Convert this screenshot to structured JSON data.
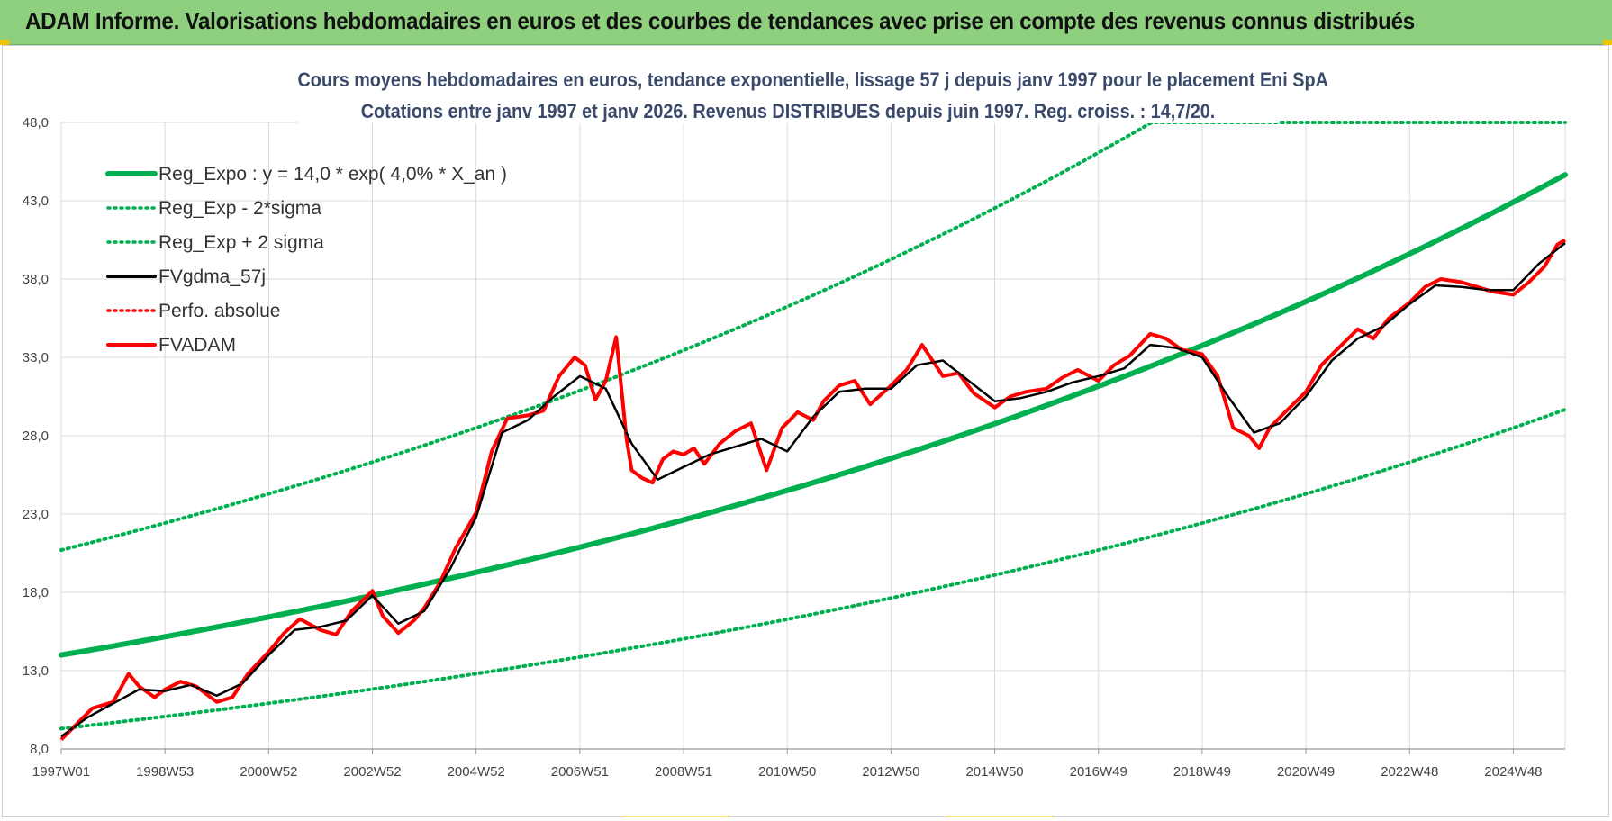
{
  "banner": {
    "title": "ADAM Informe. Valorisations hebdomadaires en euros et des courbes de tendances avec prise en compte des revenus connus distribués",
    "background": "#8fd07f"
  },
  "chart_data": {
    "type": "line",
    "title_line1": "Cours moyens hebdomadaires en euros, tendance exponentielle, lissage 57 j depuis janv 1997 pour le placement Eni SpA",
    "title_line2": "Cotations entre janv 1997 et janv 2026. Revenus DISTRIBUES depuis juin 1997. Reg. croiss. : 14,7/20.",
    "xlabel": "",
    "ylabel": "",
    "xlim": [
      1997.0,
      2026.0
    ],
    "ylim": [
      8.0,
      48.0
    ],
    "y_ticks": [
      "48,0",
      "43,0",
      "38,0",
      "33,0",
      "28,0",
      "23,0",
      "18,0",
      "13,0",
      "8,0"
    ],
    "y_tick_values": [
      48,
      43,
      38,
      33,
      28,
      23,
      18,
      13,
      8
    ],
    "x_tick_labels": [
      "1997W01",
      "1998W53",
      "2000W52",
      "2002W52",
      "2004W52",
      "2006W51",
      "2008W51",
      "2010W50",
      "2012W50",
      "2014W50",
      "2016W49",
      "2018W49",
      "2020W49",
      "2022W48",
      "2024W48"
    ],
    "x_tick_years": [
      1997.0,
      1999.0,
      2001.0,
      2003.0,
      2005.0,
      2007.0,
      2009.0,
      2011.0,
      2013.0,
      2015.0,
      2017.0,
      2019.0,
      2021.0,
      2023.0,
      2025.0
    ],
    "grid": true,
    "legend_position": "top-left",
    "legend": [
      {
        "label": "Reg_Expo : y = 14,0 * exp( 4,0% *  X_an )",
        "color": "#00b050",
        "style": "solid"
      },
      {
        "label": "Reg_Exp - 2*sigma",
        "color": "#00b050",
        "style": "dotted"
      },
      {
        "label": "Reg_Exp + 2 sigma",
        "color": "#00b050",
        "style": "dotted"
      },
      {
        "label": "FVgdma_57j",
        "color": "#000000",
        "style": "solid"
      },
      {
        "label": "Perfo. absolue",
        "color": "#ff0000",
        "style": "dotted"
      },
      {
        "label": "FVADAM",
        "color": "#ff0000",
        "style": "solid"
      }
    ],
    "regression": {
      "a": 14.0,
      "rate": 0.04,
      "start_year": 1997.0
    },
    "series": [
      {
        "name": "Reg_Expo : y = 14,0 * exp( 4,0% *  X_an )",
        "type": "function",
        "formula": "14.0*exp(0.04*(x-1997))",
        "x_range": [
          1997.0,
          2026.0
        ]
      },
      {
        "name": "Reg_Exp - 2*sigma",
        "type": "function",
        "formula": "9.3*exp(0.04*(x-1997))",
        "x_range": [
          1997.0,
          2026.0
        ]
      },
      {
        "name": "Reg_Exp + 2 sigma",
        "type": "function",
        "formula": "20.7*exp(0.04*(x-1997))",
        "x_range": [
          1997.0,
          2026.0
        ],
        "clipped_at": 48.0
      },
      {
        "name": "FVADAM",
        "x": [
          1997.0,
          1997.3,
          1997.6,
          1998.0,
          1998.3,
          1998.5,
          1998.8,
          1999.0,
          1999.3,
          1999.6,
          2000.0,
          2000.3,
          2000.6,
          2001.0,
          2001.3,
          2001.6,
          2002.0,
          2002.3,
          2002.6,
          2003.0,
          2003.2,
          2003.5,
          2003.8,
          2004.0,
          2004.3,
          2004.6,
          2005.0,
          2005.3,
          2005.6,
          2006.0,
          2006.3,
          2006.6,
          2006.9,
          2007.1,
          2007.3,
          2007.5,
          2007.7,
          2007.9,
          2008.0,
          2008.2,
          2008.4,
          2008.6,
          2008.8,
          2009.0,
          2009.2,
          2009.4,
          2009.7,
          2010.0,
          2010.3,
          2010.6,
          2010.9,
          2011.2,
          2011.5,
          2011.7,
          2012.0,
          2012.3,
          2012.6,
          2013.0,
          2013.3,
          2013.6,
          2014.0,
          2014.3,
          2014.6,
          2015.0,
          2015.3,
          2015.6,
          2016.0,
          2016.3,
          2016.6,
          2017.0,
          2017.3,
          2017.6,
          2018.0,
          2018.3,
          2018.6,
          2019.0,
          2019.3,
          2019.6,
          2019.9,
          2020.1,
          2020.3,
          2020.6,
          2021.0,
          2021.3,
          2021.6,
          2022.0,
          2022.3,
          2022.6,
          2023.0,
          2023.3,
          2023.6,
          2024.0,
          2024.3,
          2024.6,
          2025.0,
          2025.3,
          2025.6,
          2025.85,
          2026.0
        ],
        "values": [
          8.6,
          9.6,
          10.6,
          11.0,
          12.8,
          12.0,
          11.3,
          11.8,
          12.3,
          12.0,
          11.0,
          11.3,
          12.8,
          14.2,
          15.4,
          16.3,
          15.6,
          15.3,
          16.8,
          18.1,
          16.5,
          15.4,
          16.2,
          17.0,
          18.6,
          20.8,
          23.1,
          27.0,
          29.1,
          29.3,
          29.6,
          31.8,
          33.0,
          32.5,
          30.3,
          31.5,
          34.3,
          27.8,
          25.8,
          25.3,
          25.0,
          26.5,
          27.0,
          26.8,
          27.2,
          26.2,
          27.5,
          28.3,
          28.8,
          25.8,
          28.5,
          29.5,
          29.0,
          30.2,
          31.2,
          31.5,
          30.0,
          31.2,
          32.2,
          33.8,
          31.8,
          32.0,
          30.7,
          29.8,
          30.5,
          30.8,
          31.0,
          31.7,
          32.2,
          31.5,
          32.5,
          33.1,
          34.5,
          34.2,
          33.5,
          33.2,
          31.8,
          28.5,
          28.0,
          27.2,
          28.5,
          29.5,
          30.8,
          32.5,
          33.5,
          34.8,
          34.2,
          35.5,
          36.5,
          37.5,
          38.0,
          37.8,
          37.5,
          37.2,
          37.0,
          37.8,
          38.8,
          40.2,
          40.5
        ]
      },
      {
        "name": "FVgdma_57j",
        "x": [
          1997.0,
          1997.5,
          1998.0,
          1998.5,
          1999.0,
          1999.5,
          2000.0,
          2000.5,
          2001.0,
          2001.5,
          2002.0,
          2002.5,
          2003.0,
          2003.5,
          2004.0,
          2004.5,
          2005.0,
          2005.5,
          2006.0,
          2006.5,
          2007.0,
          2007.5,
          2008.0,
          2008.5,
          2009.0,
          2009.5,
          2010.0,
          2010.5,
          2011.0,
          2011.5,
          2012.0,
          2012.5,
          2013.0,
          2013.5,
          2014.0,
          2014.5,
          2015.0,
          2015.5,
          2016.0,
          2016.5,
          2017.0,
          2017.5,
          2018.0,
          2018.5,
          2019.0,
          2019.5,
          2020.0,
          2020.5,
          2021.0,
          2021.5,
          2022.0,
          2022.5,
          2023.0,
          2023.5,
          2024.0,
          2024.5,
          2025.0,
          2025.5,
          2026.0
        ],
        "values": [
          8.8,
          10.0,
          10.9,
          11.8,
          11.7,
          12.1,
          11.4,
          12.2,
          14.0,
          15.6,
          15.8,
          16.2,
          17.8,
          16.0,
          16.8,
          19.5,
          22.8,
          28.2,
          29.0,
          30.5,
          31.8,
          31.0,
          27.5,
          25.2,
          26.0,
          26.8,
          27.3,
          27.8,
          27.0,
          29.2,
          30.8,
          31.0,
          31.0,
          32.5,
          32.8,
          31.5,
          30.2,
          30.4,
          30.8,
          31.4,
          31.8,
          32.3,
          33.8,
          33.6,
          33.0,
          30.5,
          28.2,
          28.8,
          30.5,
          32.8,
          34.2,
          35.0,
          36.4,
          37.6,
          37.5,
          37.3,
          37.3,
          39.0,
          40.3
        ]
      }
    ]
  }
}
